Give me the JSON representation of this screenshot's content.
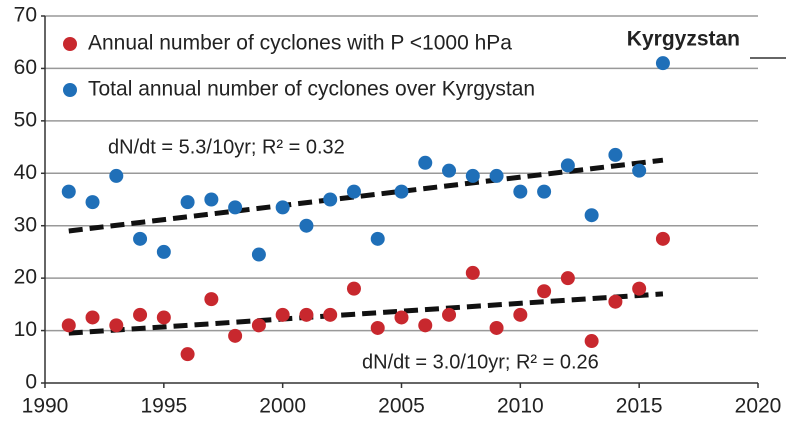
{
  "chart_data": {
    "type": "scatter",
    "title": "Kyrgyzstan",
    "xlim": [
      1990,
      2020
    ],
    "xticks": [
      1990,
      1995,
      2000,
      2005,
      2010,
      2015,
      2020
    ],
    "ylim": [
      0,
      70
    ],
    "yticks": [
      0,
      10,
      20,
      30,
      40,
      50,
      60,
      70
    ],
    "grid": true,
    "legend": "upper left",
    "x": [
      1991,
      1992,
      1993,
      1994,
      1995,
      1996,
      1997,
      1998,
      1999,
      2000,
      2001,
      2002,
      2003,
      2004,
      2005,
      2006,
      2007,
      2008,
      2009,
      2010,
      2011,
      2012,
      2013,
      2014,
      2015,
      2016
    ],
    "series": [
      {
        "name": "Annual number of cyclones with P <1000 hPa",
        "color": "#c8282e",
        "values": [
          11,
          12.5,
          11,
          13,
          12.5,
          5.5,
          16,
          9,
          11,
          13,
          13,
          13,
          18,
          10.5,
          12.5,
          11,
          13,
          21,
          10.5,
          13,
          17.5,
          20,
          8,
          15.5,
          18,
          27.5
        ]
      },
      {
        "name": "Total annual number of cyclones over Kyrgystan",
        "color": "#1f6fb8",
        "values": [
          36.5,
          34.5,
          39.5,
          27.5,
          25,
          34.5,
          35,
          33.5,
          24.5,
          33.5,
          30,
          35,
          36.5,
          27.5,
          36.5,
          42,
          40.5,
          39.5,
          39.5,
          36.5,
          36.5,
          41.5,
          32,
          43.5,
          40.5,
          61
        ]
      }
    ],
    "trends": [
      {
        "label": "dN/dt = 3.0/10yr;  R² = 0.26",
        "x": [
          1991,
          2016
        ],
        "values": [
          9.5,
          17
        ]
      },
      {
        "label": "dN/dt = 5.3/10yr;  R² = 0.32",
        "x": [
          1991,
          2016
        ],
        "values": [
          29,
          42.5
        ]
      }
    ]
  }
}
